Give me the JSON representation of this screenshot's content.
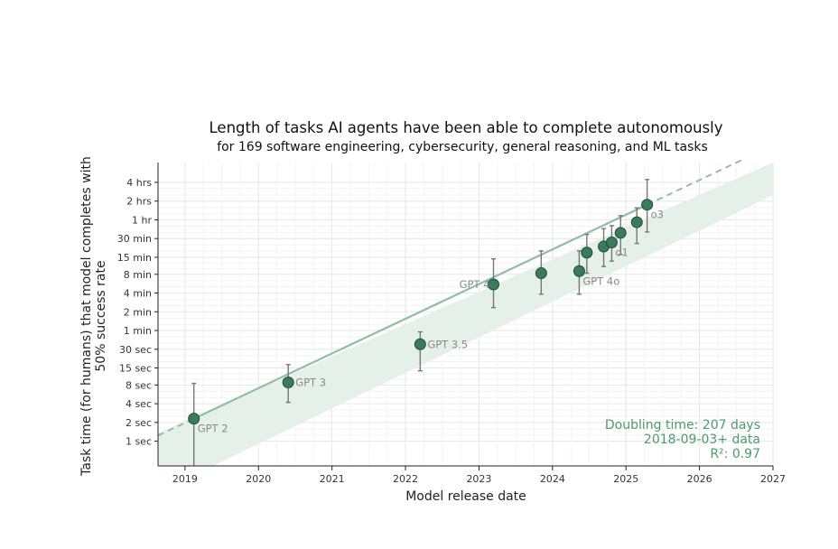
{
  "chart_data": {
    "type": "scatter",
    "title": "Length of tasks AI agents have been able to complete autonomously",
    "subtitle": "for 169 software engineering, cybersecurity, general reasoning, and ML tasks",
    "xlabel": "Model release date",
    "ylabel_line1": "Task time (for humans) that model completes with",
    "ylabel_line2": "50% success rate",
    "y_scale": "log",
    "xlim": [
      "2018-08-20",
      "2027-01-01"
    ],
    "ylim_seconds": [
      0.4,
      30000
    ],
    "x_ticks": [
      "2019",
      "2020",
      "2021",
      "2022",
      "2023",
      "2024",
      "2025",
      "2026",
      "2027"
    ],
    "y_ticks": [
      {
        "label": "1 sec",
        "seconds": 1
      },
      {
        "label": "2 sec",
        "seconds": 2
      },
      {
        "label": "4 sec",
        "seconds": 4
      },
      {
        "label": "8 sec",
        "seconds": 8
      },
      {
        "label": "15 sec",
        "seconds": 15
      },
      {
        "label": "30 sec",
        "seconds": 30
      },
      {
        "label": "1 min",
        "seconds": 60
      },
      {
        "label": "2 min",
        "seconds": 120
      },
      {
        "label": "4 min",
        "seconds": 240
      },
      {
        "label": "8 min",
        "seconds": 480
      },
      {
        "label": "15 min",
        "seconds": 900
      },
      {
        "label": "30 min",
        "seconds": 1800
      },
      {
        "label": "1 hr",
        "seconds": 3600
      },
      {
        "label": "2 hrs",
        "seconds": 7200
      },
      {
        "label": "4 hrs",
        "seconds": 14400
      }
    ],
    "grid": true,
    "points": [
      {
        "label": "GPT 2",
        "date": "2019-02-14",
        "seconds": 2.3,
        "err_low": 0.25,
        "err_high": 8.5,
        "label_side": "below-right"
      },
      {
        "label": "GPT 3",
        "date": "2020-05-28",
        "seconds": 8.8,
        "err_low": 4.2,
        "err_high": 17,
        "label_side": "right"
      },
      {
        "label": "GPT 3.5",
        "date": "2022-03-15",
        "seconds": 36,
        "err_low": 13.5,
        "err_high": 57,
        "label_side": "right"
      },
      {
        "label": "GPT 4",
        "date": "2023-03-14",
        "seconds": 330,
        "err_low": 140,
        "err_high": 850,
        "label_side": "left"
      },
      {
        "label": "",
        "date": "2023-11-06",
        "seconds": 500,
        "err_low": 230,
        "err_high": 1140
      },
      {
        "label": "GPT 4o",
        "date": "2024-05-13",
        "seconds": 540,
        "err_low": 230,
        "err_high": 1140,
        "label_side": "below-right"
      },
      {
        "label": "",
        "date": "2024-06-20",
        "seconds": 1070,
        "err_low": 500,
        "err_high": 2100
      },
      {
        "label": "",
        "date": "2024-09-12",
        "seconds": 1340,
        "err_low": 640,
        "err_high": 2600
      },
      {
        "label": "o1",
        "date": "2024-10-22",
        "seconds": 1560,
        "err_low": 780,
        "err_high": 2900,
        "label_side": "below-right"
      },
      {
        "label": "",
        "date": "2024-12-05",
        "seconds": 2220,
        "err_low": 1000,
        "err_high": 4200
      },
      {
        "label": "",
        "date": "2025-02-24",
        "seconds": 3300,
        "err_low": 1500,
        "err_high": 5600
      },
      {
        "label": "o3",
        "date": "2025-04-16",
        "seconds": 6300,
        "err_low": 2300,
        "err_high": 16000,
        "label_side": "below-right"
      }
    ],
    "trend": {
      "start_date": "2018-09-03",
      "solid_range": [
        "2019-02-14",
        "2025-04-16"
      ],
      "dashed_range": [
        "2018-08-20",
        "2027-01-01"
      ],
      "band_date_ends": [
        "2018-08-20",
        "2027-01-01"
      ],
      "band_seconds_left": [
        0.15,
        1.35
      ],
      "band_seconds_right": [
        9000,
        30000
      ]
    },
    "annotation": {
      "doubling": "Doubling time: 207 days",
      "data": "2018-09-03+ data",
      "r2": "R²: 0.97"
    },
    "colors": {
      "marker_fill": "#3b7a5a",
      "marker_edge": "#1f4d36",
      "trend_line": "#8fbfa3",
      "band": "#e3efe7",
      "annotation": "#4e9a6f",
      "label": "#8a8a8a"
    }
  }
}
